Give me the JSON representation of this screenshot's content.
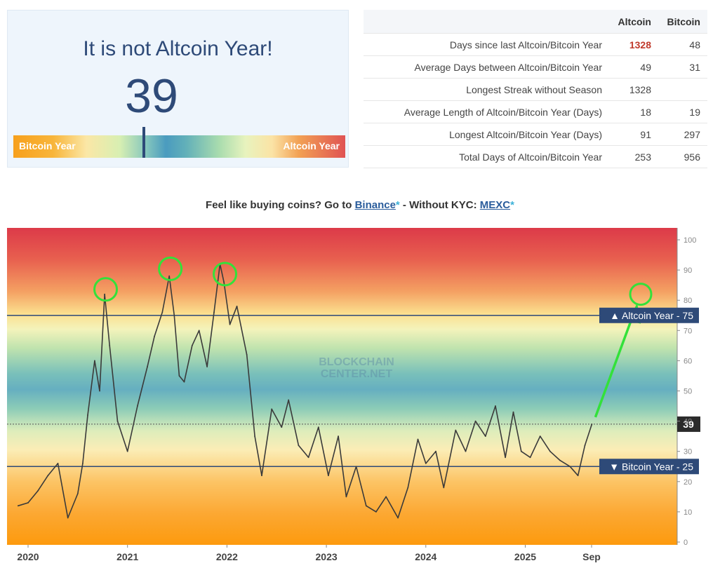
{
  "gauge": {
    "title": "It is not Altcoin Year!",
    "value": "39",
    "left_label": "Bitcoin Year",
    "right_label": "Altcoin Year"
  },
  "stats_table": {
    "headers": [
      "",
      "Altcoin",
      "Bitcoin"
    ],
    "rows": [
      {
        "label": "Days since last Altcoin/Bitcoin Year",
        "altcoin": "1328",
        "bitcoin": "48",
        "altcoin_highlight": true
      },
      {
        "label": "Average Days between Altcoin/Bitcoin Year",
        "altcoin": "49",
        "bitcoin": "31"
      },
      {
        "label": "Longest Streak without Season",
        "altcoin": "1328",
        "bitcoin": ""
      },
      {
        "label": "Average Length of Altcoin/Bitcoin Year (Days)",
        "altcoin": "18",
        "bitcoin": "19"
      },
      {
        "label": "Longest Altcoin/Bitcoin Year (Days)",
        "altcoin": "91",
        "bitcoin": "297"
      },
      {
        "label": "Total Days of Altcoin/Bitcoin Year",
        "altcoin": "253",
        "bitcoin": "956"
      }
    ]
  },
  "promo": {
    "prefix": "Feel like buying coins? Go to ",
    "link1": "Binance",
    "star1": "*",
    "middle": " - Without KYC: ",
    "link2": "MEXC",
    "star2": "*"
  },
  "chart_data": {
    "type": "line",
    "watermark": [
      "BLOCKCHAIN",
      "CENTER.NET"
    ],
    "x_tick_labels": [
      "2020",
      "2021",
      "2022",
      "2023",
      "2024",
      "2025",
      "Sep"
    ],
    "y_ticks": [
      0,
      10,
      20,
      30,
      40,
      50,
      60,
      70,
      80,
      90,
      100
    ],
    "ylim": [
      0,
      100
    ],
    "current_value": 39,
    "current_label": "39",
    "thresholds": [
      {
        "label": "▲ Altcoin Year - 75",
        "value": 75
      },
      {
        "label": "▼ Bitcoin Year - 25",
        "value": 25
      }
    ],
    "series": [
      {
        "x": [
          2019.9,
          2020.0,
          2020.1,
          2020.2,
          2020.3,
          2020.4,
          2020.5,
          2020.55,
          2020.6,
          2020.67,
          2020.72,
          2020.77,
          2020.82,
          2020.9,
          2021.0,
          2021.1,
          2021.2,
          2021.27,
          2021.35,
          2021.42,
          2021.47,
          2021.52,
          2021.57,
          2021.65,
          2021.72,
          2021.8,
          2021.87,
          2021.93,
          2021.97,
          2022.03,
          2022.1,
          2022.2,
          2022.28,
          2022.35,
          2022.45,
          2022.55,
          2022.62,
          2022.72,
          2022.82,
          2022.92,
          2023.02,
          2023.12,
          2023.2,
          2023.3,
          2023.4,
          2023.5,
          2023.6,
          2023.72,
          2023.82,
          2023.92,
          2024.0,
          2024.1,
          2024.18,
          2024.3,
          2024.4,
          2024.5,
          2024.6,
          2024.7,
          2024.8,
          2024.88,
          2024.96,
          2025.05,
          2025.15,
          2025.25,
          2025.35,
          2025.45,
          2025.53,
          2025.6,
          2025.67
        ],
        "values": [
          12,
          13,
          17,
          22,
          26,
          8,
          16,
          26,
          42,
          60,
          50,
          82,
          65,
          40,
          30,
          45,
          58,
          68,
          76,
          88,
          75,
          55,
          53,
          65,
          70,
          58,
          76,
          92,
          86,
          72,
          78,
          62,
          35,
          22,
          44,
          38,
          47,
          32,
          28,
          38,
          22,
          35,
          15,
          25,
          12,
          10,
          15,
          8,
          18,
          34,
          26,
          30,
          18,
          37,
          30,
          40,
          35,
          45,
          28,
          43,
          30,
          28,
          35,
          30,
          27,
          25,
          22,
          32,
          39
        ]
      }
    ],
    "annotations": {
      "peak_circles_at_years": [
        2020.78,
        2021.43,
        2021.98
      ],
      "target_circle_value": 82
    }
  }
}
